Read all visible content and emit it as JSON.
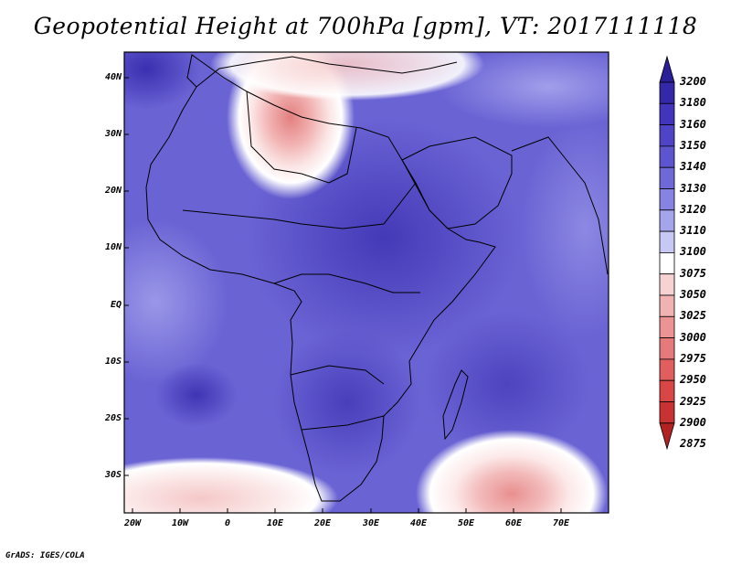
{
  "title": "Geopotential Height at 700hPa [gpm], VT: 2017111118",
  "credit": "GrADS: IGES/COLA",
  "lat_labels": [
    "40N",
    "30N",
    "20N",
    "10N",
    "EQ",
    "10S",
    "20S",
    "30S"
  ],
  "lon_labels": [
    "20W",
    "10W",
    "0",
    "10E",
    "20E",
    "30E",
    "40E",
    "50E",
    "60E",
    "70E"
  ],
  "colorbar": {
    "levels": [
      "3200",
      "3180",
      "3160",
      "3150",
      "3140",
      "3130",
      "3120",
      "3110",
      "3100",
      "3075",
      "3050",
      "3025",
      "3000",
      "2975",
      "2950",
      "2925",
      "2900",
      "2875"
    ],
    "colors": [
      "#2a1f96",
      "#3528a8",
      "#4234bb",
      "#4f44c6",
      "#5d55cf",
      "#6e68d8",
      "#8683e2",
      "#a5a5ec",
      "#c8c8f5",
      "#ffffff",
      "#f7d2d2",
      "#f1b2b2",
      "#ec9494",
      "#e67a7a",
      "#e05e5e",
      "#d84646",
      "#c83232",
      "#b22222"
    ]
  },
  "map_colors": {
    "ocean_base": "#6a63d4",
    "land_base": "#4a3fc2",
    "high": "#3a2fb0",
    "ridge_low": "#b8b8f0",
    "trough_white": "#ffffff",
    "trough_pink": "#f3c2c2",
    "trough_red": "#e88a8a",
    "border": "#000000"
  }
}
